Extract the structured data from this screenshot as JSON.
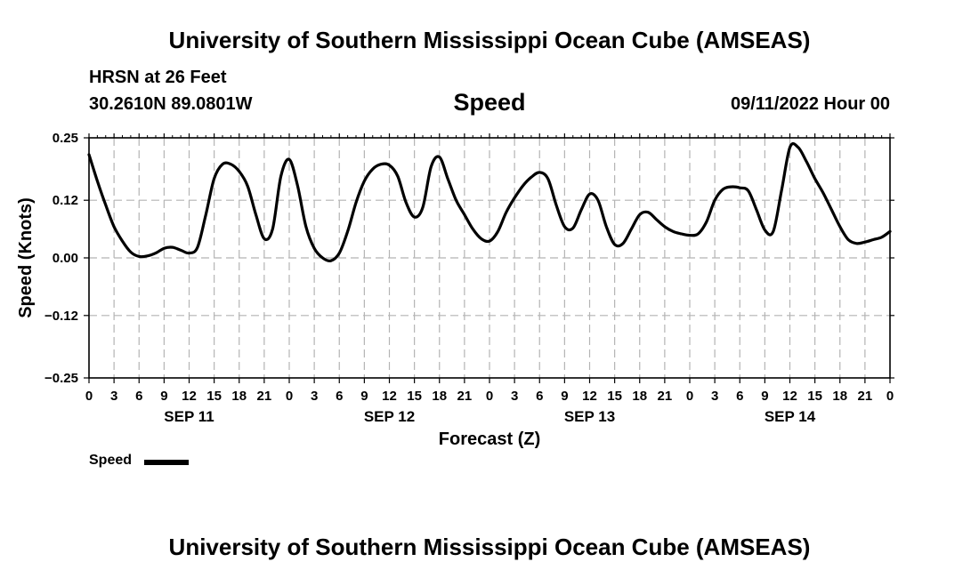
{
  "header": {
    "title": "University of Southern Mississippi Ocean Cube (AMSEAS)",
    "station": "HRSN at 26 Feet",
    "coords": "30.2610N  89.0801W",
    "variable": "Speed",
    "datetime": "09/11/2022 Hour 00"
  },
  "footer": {
    "title": "University of Southern Mississippi Ocean Cube (AMSEAS)"
  },
  "legend": {
    "label": "Speed"
  },
  "chart_data": {
    "type": "line",
    "title": "Speed",
    "xlabel": "Forecast (Z)",
    "ylabel": "Speed (Knots)",
    "ylim": [
      -0.25,
      0.25
    ],
    "y_ticks": [
      0.25,
      0.12,
      0.0,
      -0.12,
      -0.25
    ],
    "y_tick_labels": [
      "0.25",
      "0.12",
      "0.00",
      "−0.12",
      "−0.25"
    ],
    "xlim": [
      0,
      96
    ],
    "x_tick_hours": [
      0,
      3,
      6,
      9,
      12,
      15,
      18,
      21,
      24,
      27,
      30,
      33,
      36,
      39,
      42,
      45,
      48,
      51,
      54,
      57,
      60,
      63,
      66,
      69,
      72,
      75,
      78,
      81,
      84,
      87,
      90,
      93,
      96
    ],
    "x_tick_labels": [
      "0",
      "3",
      "6",
      "9",
      "12",
      "15",
      "18",
      "21",
      "0",
      "3",
      "6",
      "9",
      "12",
      "15",
      "18",
      "21",
      "0",
      "3",
      "6",
      "9",
      "12",
      "15",
      "18",
      "21",
      "0",
      "3",
      "6",
      "9",
      "12",
      "15",
      "18",
      "21",
      "0"
    ],
    "date_labels": [
      {
        "hour": 12,
        "label": "SEP 11"
      },
      {
        "hour": 36,
        "label": "SEP 12"
      },
      {
        "hour": 60,
        "label": "SEP 13"
      },
      {
        "hour": 84,
        "label": "SEP 14"
      }
    ],
    "grid": true,
    "series": [
      {
        "name": "Speed",
        "color": "#000000",
        "x": [
          0,
          1,
          2,
          3,
          4,
          5,
          6,
          7,
          8,
          9,
          10,
          11,
          12,
          13,
          14,
          15,
          16,
          17,
          18,
          19,
          20,
          21,
          22,
          23,
          24,
          25,
          26,
          27,
          28,
          29,
          30,
          31,
          32,
          33,
          34,
          35,
          36,
          37,
          38,
          39,
          40,
          41,
          42,
          43,
          44,
          45,
          46,
          47,
          48,
          49,
          50,
          51,
          52,
          53,
          54,
          55,
          56,
          57,
          58,
          59,
          60,
          61,
          62,
          63,
          64,
          65,
          66,
          67,
          68,
          69,
          70,
          71,
          72,
          73,
          74,
          75,
          76,
          77,
          78,
          79,
          80,
          81,
          82,
          83,
          84,
          85,
          86,
          87,
          88,
          89,
          90,
          91,
          92,
          93,
          94,
          95,
          96
        ],
        "y": [
          0.215,
          0.16,
          0.11,
          0.065,
          0.035,
          0.012,
          0.003,
          0.004,
          0.01,
          0.02,
          0.022,
          0.016,
          0.01,
          0.022,
          0.09,
          0.165,
          0.195,
          0.195,
          0.18,
          0.15,
          0.09,
          0.04,
          0.06,
          0.17,
          0.205,
          0.15,
          0.065,
          0.02,
          0.0,
          -0.006,
          0.01,
          0.055,
          0.115,
          0.16,
          0.185,
          0.195,
          0.193,
          0.17,
          0.115,
          0.085,
          0.105,
          0.19,
          0.21,
          0.165,
          0.12,
          0.09,
          0.06,
          0.04,
          0.035,
          0.055,
          0.095,
          0.125,
          0.15,
          0.168,
          0.178,
          0.165,
          0.11,
          0.065,
          0.062,
          0.1,
          0.133,
          0.12,
          0.065,
          0.028,
          0.03,
          0.06,
          0.09,
          0.095,
          0.08,
          0.065,
          0.055,
          0.05,
          0.047,
          0.05,
          0.075,
          0.12,
          0.143,
          0.148,
          0.146,
          0.14,
          0.1,
          0.058,
          0.055,
          0.14,
          0.23,
          0.23,
          0.2,
          0.165,
          0.135,
          0.1,
          0.065,
          0.038,
          0.03,
          0.033,
          0.038,
          0.043,
          0.055
        ]
      }
    ]
  }
}
